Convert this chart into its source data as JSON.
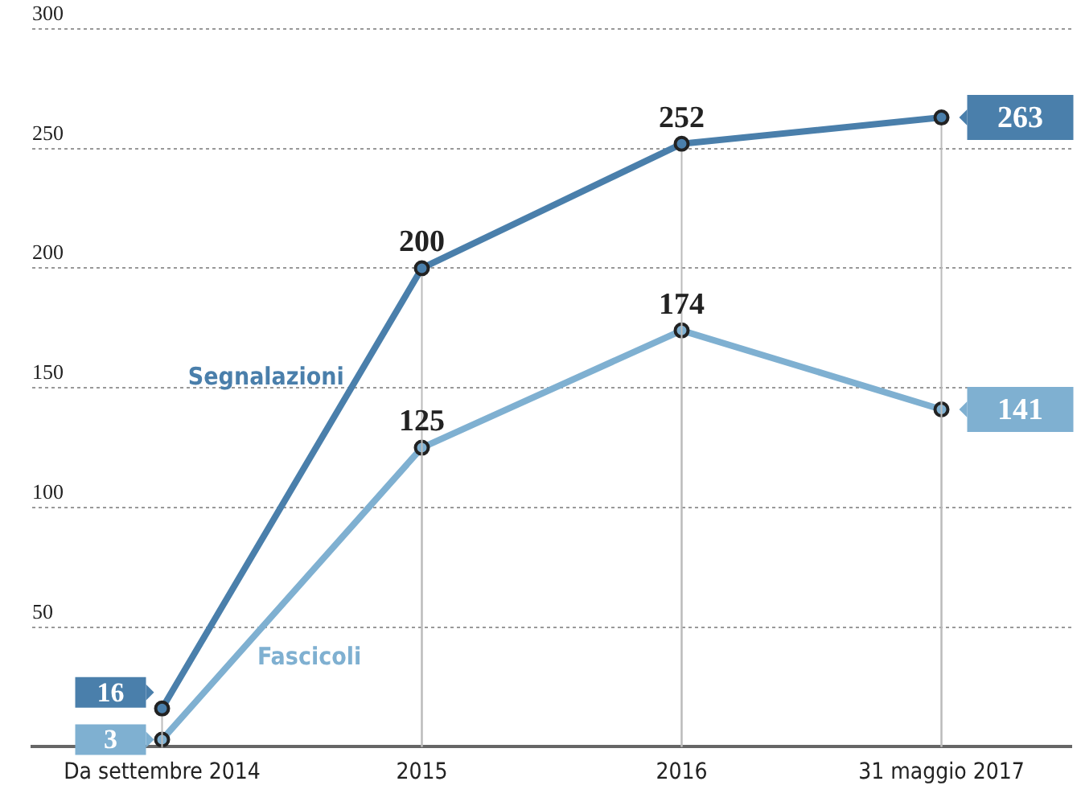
{
  "chart_data": {
    "type": "line",
    "categories": [
      "Da settembre 2014",
      "2015",
      "2016",
      "31 maggio 2017"
    ],
    "series": [
      {
        "name": "Segnalazioni",
        "color": "#4a7fab",
        "values": [
          16,
          200,
          252,
          263
        ]
      },
      {
        "name": "Fascicoli",
        "color": "#7fb0d1",
        "values": [
          3,
          125,
          174,
          141
        ]
      }
    ],
    "ylim": [
      0,
      300
    ],
    "yticks": [
      50,
      100,
      150,
      200,
      250,
      300
    ],
    "grid": true,
    "legend": false,
    "marker": "circle",
    "line_style": "solid",
    "data_labels": true
  }
}
